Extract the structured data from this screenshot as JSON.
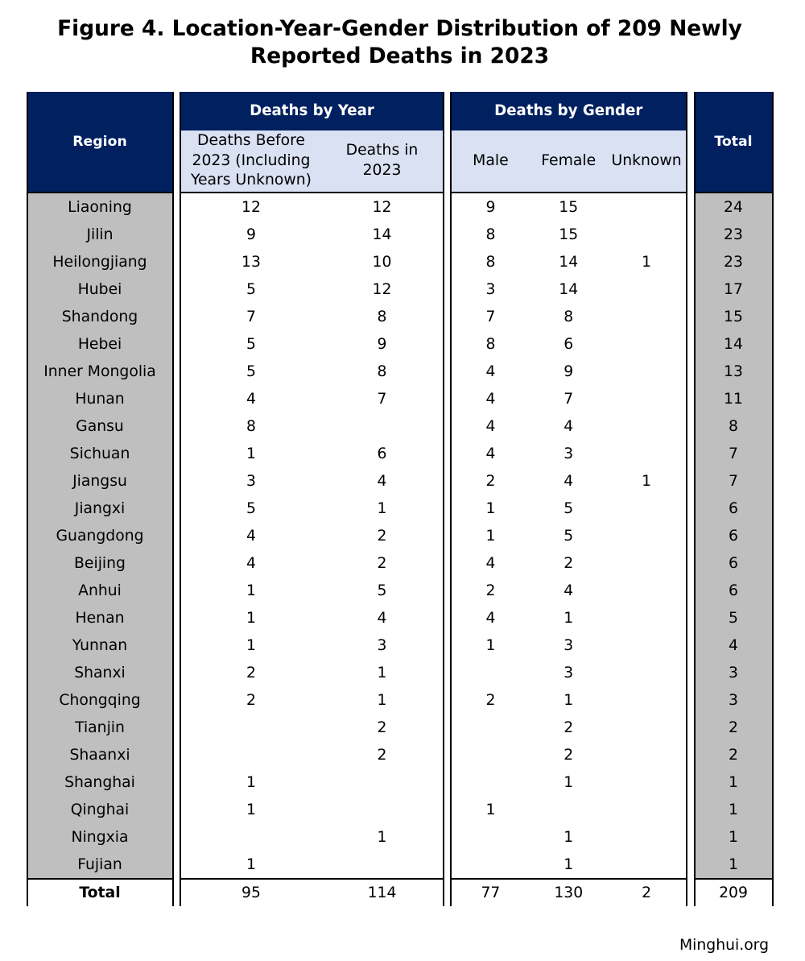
{
  "title": "Figure 4. Location-Year-Gender Distribution of 209 Newly Reported Deaths in 2023",
  "footer": {
    "site": "Minghui.org"
  },
  "colors": {
    "header_navy": "#002060",
    "subheader_lavender": "#d9e1f2",
    "row_gray": "#bfbfbf",
    "border_black": "#000000",
    "background": "#ffffff"
  },
  "table": {
    "region_header": "Region",
    "total_header": "Total",
    "groups": [
      {
        "title": "Deaths by Year",
        "columns": [
          "Deaths Before 2023 (Including Years Unknown)",
          "Deaths in 2023"
        ]
      },
      {
        "title": "Deaths by Gender",
        "columns": [
          "Male",
          "Female",
          "Unknown"
        ]
      }
    ],
    "rows": [
      {
        "region": "Liaoning",
        "before": "12",
        "in2023": "12",
        "male": "9",
        "female": "15",
        "unknown": "",
        "total": "24"
      },
      {
        "region": "Jilin",
        "before": "9",
        "in2023": "14",
        "male": "8",
        "female": "15",
        "unknown": "",
        "total": "23"
      },
      {
        "region": "Heilongjiang",
        "before": "13",
        "in2023": "10",
        "male": "8",
        "female": "14",
        "unknown": "1",
        "total": "23"
      },
      {
        "region": "Hubei",
        "before": "5",
        "in2023": "12",
        "male": "3",
        "female": "14",
        "unknown": "",
        "total": "17"
      },
      {
        "region": "Shandong",
        "before": "7",
        "in2023": "8",
        "male": "7",
        "female": "8",
        "unknown": "",
        "total": "15"
      },
      {
        "region": "Hebei",
        "before": "5",
        "in2023": "9",
        "male": "8",
        "female": "6",
        "unknown": "",
        "total": "14"
      },
      {
        "region": "Inner Mongolia",
        "before": "5",
        "in2023": "8",
        "male": "4",
        "female": "9",
        "unknown": "",
        "total": "13"
      },
      {
        "region": "Hunan",
        "before": "4",
        "in2023": "7",
        "male": "4",
        "female": "7",
        "unknown": "",
        "total": "11"
      },
      {
        "region": "Gansu",
        "before": "8",
        "in2023": "",
        "male": "4",
        "female": "4",
        "unknown": "",
        "total": "8"
      },
      {
        "region": "Sichuan",
        "before": "1",
        "in2023": "6",
        "male": "4",
        "female": "3",
        "unknown": "",
        "total": "7"
      },
      {
        "region": "Jiangsu",
        "before": "3",
        "in2023": "4",
        "male": "2",
        "female": "4",
        "unknown": "1",
        "total": "7"
      },
      {
        "region": "Jiangxi",
        "before": "5",
        "in2023": "1",
        "male": "1",
        "female": "5",
        "unknown": "",
        "total": "6"
      },
      {
        "region": "Guangdong",
        "before": "4",
        "in2023": "2",
        "male": "1",
        "female": "5",
        "unknown": "",
        "total": "6"
      },
      {
        "region": "Beijing",
        "before": "4",
        "in2023": "2",
        "male": "4",
        "female": "2",
        "unknown": "",
        "total": "6"
      },
      {
        "region": "Anhui",
        "before": "1",
        "in2023": "5",
        "male": "2",
        "female": "4",
        "unknown": "",
        "total": "6"
      },
      {
        "region": "Henan",
        "before": "1",
        "in2023": "4",
        "male": "4",
        "female": "1",
        "unknown": "",
        "total": "5"
      },
      {
        "region": "Yunnan",
        "before": "1",
        "in2023": "3",
        "male": "1",
        "female": "3",
        "unknown": "",
        "total": "4"
      },
      {
        "region": "Shanxi",
        "before": "2",
        "in2023": "1",
        "male": "",
        "female": "3",
        "unknown": "",
        "total": "3"
      },
      {
        "region": "Chongqing",
        "before": "2",
        "in2023": "1",
        "male": "2",
        "female": "1",
        "unknown": "",
        "total": "3"
      },
      {
        "region": "Tianjin",
        "before": "",
        "in2023": "2",
        "male": "",
        "female": "2",
        "unknown": "",
        "total": "2"
      },
      {
        "region": "Shaanxi",
        "before": "",
        "in2023": "2",
        "male": "",
        "female": "2",
        "unknown": "",
        "total": "2"
      },
      {
        "region": "Shanghai",
        "before": "1",
        "in2023": "",
        "male": "",
        "female": "1",
        "unknown": "",
        "total": "1"
      },
      {
        "region": "Qinghai",
        "before": "1",
        "in2023": "",
        "male": "1",
        "female": "",
        "unknown": "",
        "total": "1"
      },
      {
        "region": "Ningxia",
        "before": "",
        "in2023": "1",
        "male": "",
        "female": "1",
        "unknown": "",
        "total": "1"
      },
      {
        "region": "Fujian",
        "before": "1",
        "in2023": "",
        "male": "",
        "female": "1",
        "unknown": "",
        "total": "1"
      }
    ],
    "totals": {
      "label": "Total",
      "before": "95",
      "in2023": "114",
      "male": "77",
      "female": "130",
      "unknown": "2",
      "total": "209"
    }
  },
  "chart_data": {
    "type": "table",
    "title": "Figure 4. Location-Year-Gender Distribution of 209 Newly Reported Deaths in 2023",
    "column_groups": [
      "Deaths by Year",
      "Deaths by Gender"
    ],
    "columns": [
      "Region",
      "Deaths Before 2023 (Including Years Unknown)",
      "Deaths in 2023",
      "Male",
      "Female",
      "Unknown",
      "Total"
    ],
    "rows": [
      [
        "Liaoning",
        12,
        12,
        9,
        15,
        null,
        24
      ],
      [
        "Jilin",
        9,
        14,
        8,
        15,
        null,
        23
      ],
      [
        "Heilongjiang",
        13,
        10,
        8,
        14,
        1,
        23
      ],
      [
        "Hubei",
        5,
        12,
        3,
        14,
        null,
        17
      ],
      [
        "Shandong",
        7,
        8,
        7,
        8,
        null,
        15
      ],
      [
        "Hebei",
        5,
        9,
        8,
        6,
        null,
        14
      ],
      [
        "Inner Mongolia",
        5,
        8,
        4,
        9,
        null,
        13
      ],
      [
        "Hunan",
        4,
        7,
        4,
        7,
        null,
        11
      ],
      [
        "Gansu",
        8,
        null,
        4,
        4,
        null,
        8
      ],
      [
        "Sichuan",
        1,
        6,
        4,
        3,
        null,
        7
      ],
      [
        "Jiangsu",
        3,
        4,
        2,
        4,
        1,
        7
      ],
      [
        "Jiangxi",
        5,
        1,
        1,
        5,
        null,
        6
      ],
      [
        "Guangdong",
        4,
        2,
        1,
        5,
        null,
        6
      ],
      [
        "Beijing",
        4,
        2,
        4,
        2,
        null,
        6
      ],
      [
        "Anhui",
        1,
        5,
        2,
        4,
        null,
        6
      ],
      [
        "Henan",
        1,
        4,
        4,
        1,
        null,
        5
      ],
      [
        "Yunnan",
        1,
        3,
        1,
        3,
        null,
        4
      ],
      [
        "Shanxi",
        2,
        1,
        null,
        3,
        null,
        3
      ],
      [
        "Chongqing",
        2,
        1,
        2,
        1,
        null,
        3
      ],
      [
        "Tianjin",
        null,
        2,
        null,
        2,
        null,
        2
      ],
      [
        "Shaanxi",
        null,
        2,
        null,
        2,
        null,
        2
      ],
      [
        "Shanghai",
        1,
        null,
        null,
        1,
        null,
        1
      ],
      [
        "Qinghai",
        1,
        null,
        1,
        null,
        null,
        1
      ],
      [
        "Ningxia",
        null,
        1,
        null,
        1,
        null,
        1
      ],
      [
        "Fujian",
        1,
        null,
        null,
        1,
        null,
        1
      ]
    ],
    "totals_row": [
      "Total",
      95,
      114,
      77,
      130,
      2,
      209
    ],
    "source": "Minghui.org"
  }
}
